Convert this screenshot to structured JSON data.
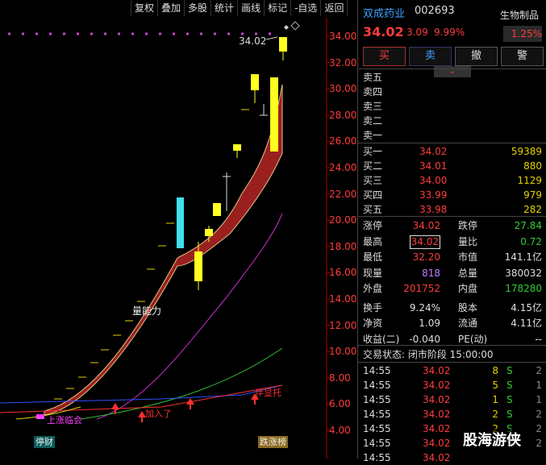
{
  "toolbar": [
    "复权",
    "叠加",
    "多股",
    "统计",
    "画线",
    "标记",
    "-自选",
    "返回"
  ],
  "chart": {
    "yticks": [
      "34.00",
      "32.00",
      "30.00",
      "28.00",
      "26.00",
      "24.00",
      "22.00",
      "20.00",
      "18.00",
      "16.00",
      "14.00",
      "12.00",
      "10.00",
      "8.00",
      "6.00",
      "4.00"
    ],
    "peak_label": "34.02",
    "ann_liangneng": "量能力",
    "ann_shangzhangqixia": "上涨临会",
    "ann_jiaru": "加入了",
    "ann_qidian": "停财",
    "ann_dianxing": "伴显托",
    "tag_bottom_left": "停财",
    "tag_bottom_right": "跌涨榜"
  },
  "stock": {
    "name": "双成药业",
    "code": "002693",
    "sector": "生物制品",
    "sector_pct": "1.25%",
    "price": "34.02",
    "change": "3.09",
    "change_pct": "9.99%"
  },
  "actions": [
    "买",
    "卖",
    "撤",
    "警"
  ],
  "sell_labels": [
    "卖五",
    "卖四",
    "卖三",
    "卖二",
    "卖一"
  ],
  "buy": [
    {
      "label": "买一",
      "price": "34.02",
      "vol": "59389"
    },
    {
      "label": "买二",
      "price": "34.01",
      "vol": "880"
    },
    {
      "label": "买三",
      "price": "34.00",
      "vol": "1129"
    },
    {
      "label": "买四",
      "price": "33.99",
      "vol": "979"
    },
    {
      "label": "买五",
      "price": "33.98",
      "vol": "282"
    }
  ],
  "stats": {
    "zt_l": "涨停",
    "zt": "34.02",
    "dt_l": "跌停",
    "dt": "27.84",
    "zg_l": "最高",
    "zg": "34.02",
    "lb_l": "量比",
    "lb": "0.72",
    "zd_l": "最低",
    "zd": "32.20",
    "sz_l": "市值",
    "sz": "141.1亿",
    "xl_l": "现量",
    "xl": "818",
    "zl_l": "总量",
    "zl": "380032",
    "wp_l": "外盘",
    "wp": "201752",
    "np_l": "内盘",
    "np": "178280",
    "hs_l": "换手",
    "hs": "9.24%",
    "gb_l": "股本",
    "gb": "4.15亿",
    "jz_l": "净资",
    "jz": "1.09",
    "lt_l": "流通",
    "lt": "4.11亿",
    "sy_l": "收益(二)",
    "sy": "-0.040",
    "pe_l": "PE(动)",
    "pe": "--"
  },
  "trade_status": "交易状态: 闭市阶段 15:00:00",
  "ticks": [
    {
      "t": "14:55",
      "p": "34.02",
      "v": "8",
      "d": "S",
      "n": "2"
    },
    {
      "t": "14:55",
      "p": "34.02",
      "v": "5",
      "d": "S",
      "n": "1"
    },
    {
      "t": "14:55",
      "p": "34.02",
      "v": "1",
      "d": "S",
      "n": "1"
    },
    {
      "t": "14:55",
      "p": "34.02",
      "v": "2",
      "d": "S",
      "n": "2"
    },
    {
      "t": "14:55",
      "p": "34.02",
      "v": "2",
      "d": "S",
      "n": "2"
    },
    {
      "t": "14:55",
      "p": "34.02",
      "v": "5",
      "d": "S",
      "n": "2"
    },
    {
      "t": "14:55",
      "p": "34.02",
      "v": "",
      "d": "",
      "n": ""
    }
  ],
  "watermark": "股海游侠"
}
